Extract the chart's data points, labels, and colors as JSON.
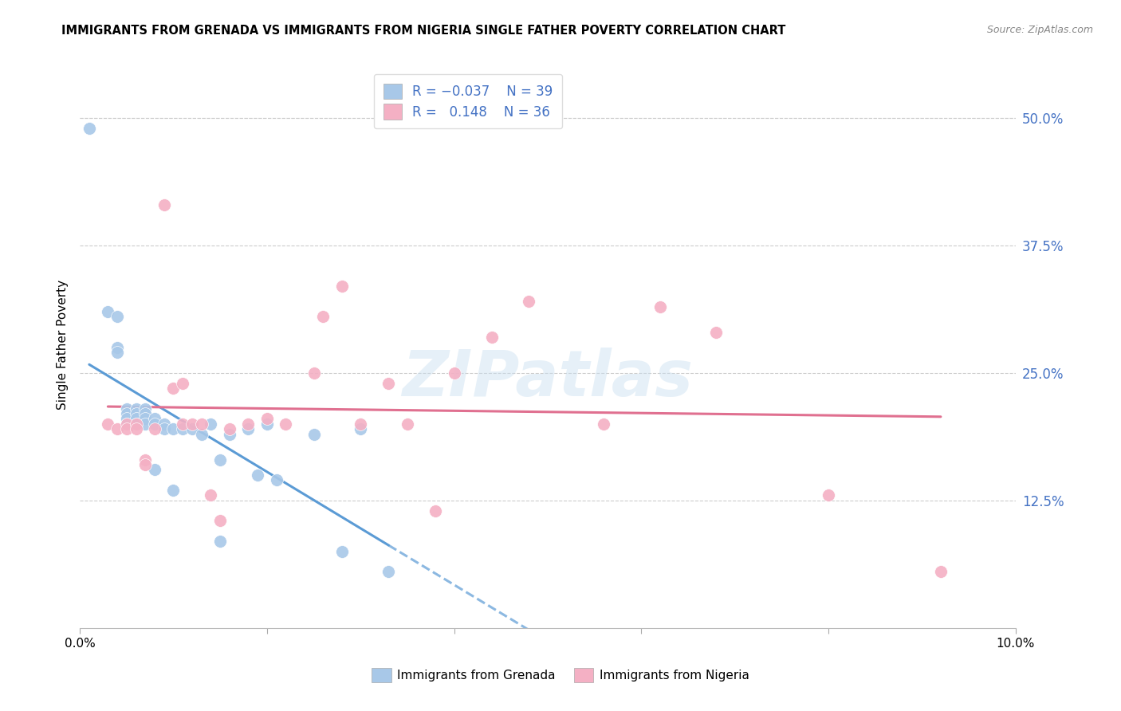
{
  "title": "IMMIGRANTS FROM GRENADA VS IMMIGRANTS FROM NIGERIA SINGLE FATHER POVERTY CORRELATION CHART",
  "source": "Source: ZipAtlas.com",
  "ylabel": "Single Father Poverty",
  "right_yticks": [
    "50.0%",
    "37.5%",
    "25.0%",
    "12.5%"
  ],
  "right_ytick_vals": [
    0.5,
    0.375,
    0.25,
    0.125
  ],
  "xlim": [
    0.0,
    0.1
  ],
  "ylim": [
    0.0,
    0.555
  ],
  "color_grenada": "#a8c8e8",
  "color_nigeria": "#f4b0c4",
  "color_grenada_line": "#5b9bd5",
  "color_nigeria_line": "#e07090",
  "watermark": "ZIPatlas",
  "grenada_x": [
    0.001,
    0.003,
    0.004,
    0.004,
    0.004,
    0.005,
    0.005,
    0.005,
    0.005,
    0.006,
    0.006,
    0.006,
    0.006,
    0.007,
    0.007,
    0.007,
    0.007,
    0.008,
    0.008,
    0.008,
    0.009,
    0.009,
    0.01,
    0.01,
    0.011,
    0.012,
    0.013,
    0.014,
    0.015,
    0.015,
    0.016,
    0.018,
    0.019,
    0.02,
    0.021,
    0.025,
    0.028,
    0.03,
    0.033
  ],
  "grenada_y": [
    0.49,
    0.31,
    0.305,
    0.275,
    0.27,
    0.215,
    0.21,
    0.205,
    0.2,
    0.215,
    0.21,
    0.205,
    0.2,
    0.215,
    0.21,
    0.205,
    0.2,
    0.205,
    0.2,
    0.155,
    0.2,
    0.195,
    0.195,
    0.135,
    0.195,
    0.195,
    0.19,
    0.2,
    0.165,
    0.085,
    0.19,
    0.195,
    0.15,
    0.2,
    0.145,
    0.19,
    0.075,
    0.195,
    0.055
  ],
  "nigeria_x": [
    0.003,
    0.004,
    0.005,
    0.005,
    0.006,
    0.006,
    0.007,
    0.007,
    0.008,
    0.009,
    0.01,
    0.011,
    0.011,
    0.012,
    0.013,
    0.014,
    0.015,
    0.016,
    0.018,
    0.02,
    0.022,
    0.025,
    0.026,
    0.028,
    0.03,
    0.033,
    0.035,
    0.038,
    0.04,
    0.044,
    0.048,
    0.056,
    0.062,
    0.068,
    0.08,
    0.092
  ],
  "nigeria_y": [
    0.2,
    0.195,
    0.2,
    0.195,
    0.2,
    0.195,
    0.165,
    0.16,
    0.195,
    0.415,
    0.235,
    0.24,
    0.2,
    0.2,
    0.2,
    0.13,
    0.105,
    0.195,
    0.2,
    0.205,
    0.2,
    0.25,
    0.305,
    0.335,
    0.2,
    0.24,
    0.2,
    0.115,
    0.25,
    0.285,
    0.32,
    0.2,
    0.315,
    0.29,
    0.13,
    0.055
  ]
}
